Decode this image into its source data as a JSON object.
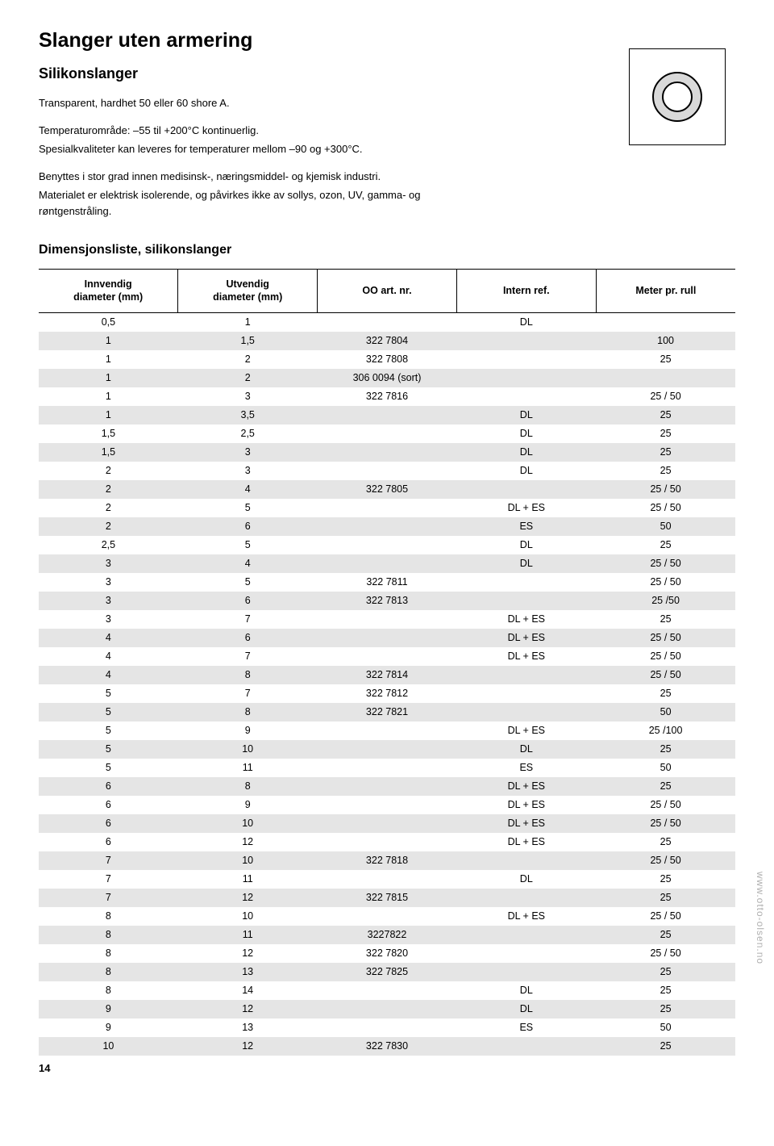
{
  "page_title": "Slanger uten armering",
  "subtitle": "Silikonslanger",
  "intro_lines": [
    "Transparent, hardhet 50 eller 60 shore A.",
    "Temperaturområde: –55 til +200°C kontinuerlig.",
    "Spesialkvaliteter kan leveres for temperaturer mellom –90 og +300°C.",
    "Benyttes i stor grad innen medisinsk-, næringsmiddel- og kjemisk industri.",
    "Materialet er elektrisk isolerende, og påvirkes ikke av sollys, ozon, UV, gamma- og røntgenstråling."
  ],
  "diagram": {
    "outer_radius": 30,
    "inner_radius": 18,
    "fill_outer": "#d9d9d9",
    "fill_inner": "#ffffff",
    "stroke": "#000000",
    "stroke_width": 2
  },
  "table_title": "Dimensjonsliste, silikonslanger",
  "columns": [
    "Innvendig\ndiameter (mm)",
    "Utvendig\ndiameter (mm)",
    "OO art. nr.",
    "Intern ref.",
    "Meter pr. rull"
  ],
  "col_widths": [
    "20%",
    "20%",
    "20%",
    "20%",
    "20%"
  ],
  "stripe_color": "#e5e5e5",
  "rows": [
    [
      "0,5",
      "1",
      "",
      "DL",
      ""
    ],
    [
      "1",
      "1,5",
      "322 7804",
      "",
      "100"
    ],
    [
      "1",
      "2",
      "322 7808",
      "",
      "25"
    ],
    [
      "1",
      "2",
      "306 0094 (sort)",
      "",
      ""
    ],
    [
      "1",
      "3",
      "322 7816",
      "",
      "25 / 50"
    ],
    [
      "1",
      "3,5",
      "",
      "DL",
      "25"
    ],
    [
      "1,5",
      "2,5",
      "",
      "DL",
      "25"
    ],
    [
      "1,5",
      "3",
      "",
      "DL",
      "25"
    ],
    [
      "2",
      "3",
      "",
      "DL",
      "25"
    ],
    [
      "2",
      "4",
      "322 7805",
      "",
      "25 / 50"
    ],
    [
      "2",
      "5",
      "",
      "DL + ES",
      "25 / 50"
    ],
    [
      "2",
      "6",
      "",
      "ES",
      "50"
    ],
    [
      "2,5",
      "5",
      "",
      "DL",
      "25"
    ],
    [
      "3",
      "4",
      "",
      "DL",
      "25 / 50"
    ],
    [
      "3",
      "5",
      "322 7811",
      "",
      "25 / 50"
    ],
    [
      "3",
      "6",
      "322 7813",
      "",
      "25 /50"
    ],
    [
      "3",
      "7",
      "",
      "DL + ES",
      "25"
    ],
    [
      "4",
      "6",
      "",
      "DL + ES",
      "25 / 50"
    ],
    [
      "4",
      "7",
      "",
      "DL + ES",
      "25 / 50"
    ],
    [
      "4",
      "8",
      "322 7814",
      "",
      "25 / 50"
    ],
    [
      "5",
      "7",
      "322 7812",
      "",
      "25"
    ],
    [
      "5",
      "8",
      "322 7821",
      "",
      "50"
    ],
    [
      "5",
      "9",
      "",
      "DL + ES",
      "25 /100"
    ],
    [
      "5",
      "10",
      "",
      "DL",
      "25"
    ],
    [
      "5",
      "11",
      "",
      "ES",
      "50"
    ],
    [
      "6",
      "8",
      "",
      "DL + ES",
      "25"
    ],
    [
      "6",
      "9",
      "",
      "DL + ES",
      "25 / 50"
    ],
    [
      "6",
      "10",
      "",
      "DL + ES",
      "25 / 50"
    ],
    [
      "6",
      "12",
      "",
      "DL + ES",
      "25"
    ],
    [
      "7",
      "10",
      "322 7818",
      "",
      "25 / 50"
    ],
    [
      "7",
      "11",
      "",
      "DL",
      "25"
    ],
    [
      "7",
      "12",
      "322 7815",
      "",
      "25"
    ],
    [
      "8",
      "10",
      "",
      "DL + ES",
      "25 / 50"
    ],
    [
      "8",
      "11",
      "3227822",
      "",
      "25"
    ],
    [
      "8",
      "12",
      "322 7820",
      "",
      "25 / 50"
    ],
    [
      "8",
      "13",
      "322 7825",
      "",
      "25"
    ],
    [
      "8",
      "14",
      "",
      "DL",
      "25"
    ],
    [
      "9",
      "12",
      "",
      "DL",
      "25"
    ],
    [
      "9",
      "13",
      "",
      "ES",
      "50"
    ],
    [
      "10",
      "12",
      "322 7830",
      "",
      "25"
    ]
  ],
  "side_text": "www.otto-olsen.no",
  "page_number": "14"
}
